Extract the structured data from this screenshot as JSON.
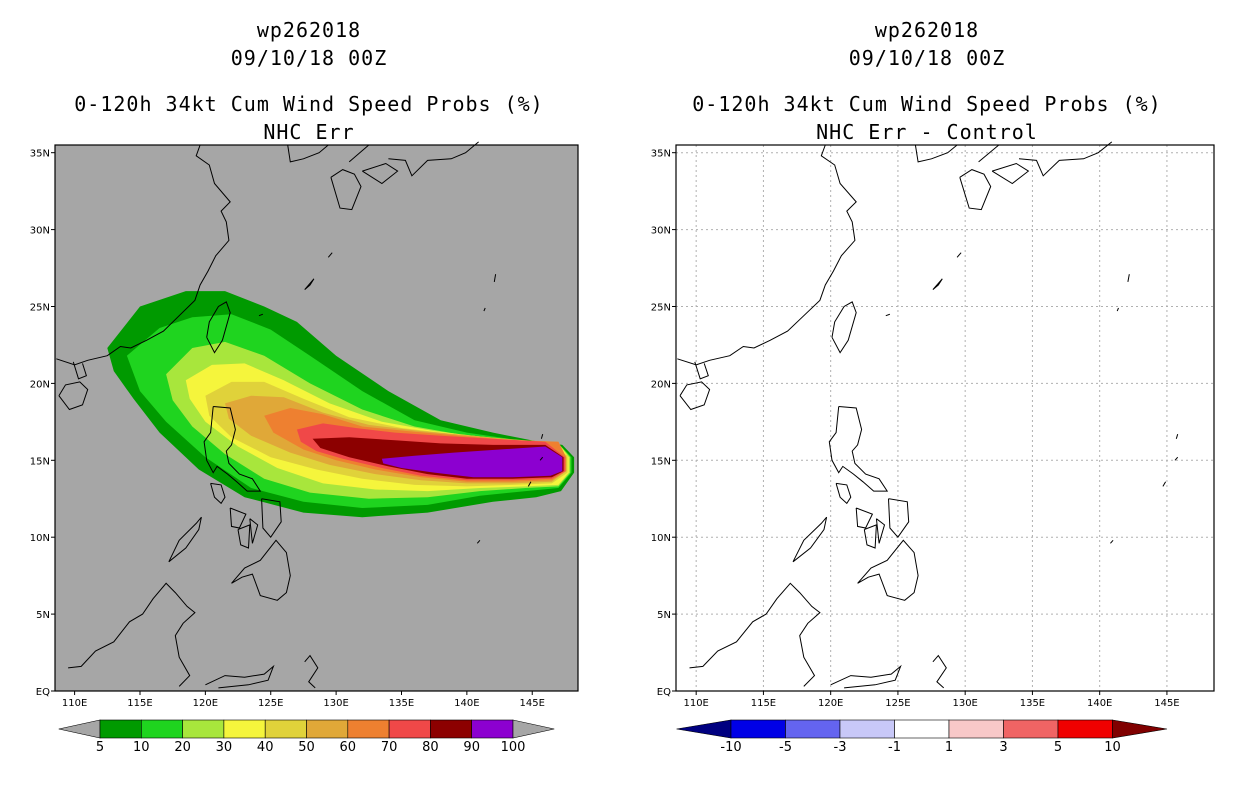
{
  "left_panel": {
    "title_storm": "wp262018",
    "title_date": "09/10/18 00Z",
    "title_product": "0-120h 34kt Cum Wind Speed Probs (%)",
    "title_variant": "NHC Err",
    "colorbar": {
      "labels": [
        "5",
        "10",
        "20",
        "30",
        "40",
        "50",
        "60",
        "70",
        "80",
        "90",
        "100"
      ],
      "colors": [
        "#a6a6a6",
        "#009a00",
        "#1fd41f",
        "#a8e63c",
        "#f5f53c",
        "#e0d23a",
        "#e0a838",
        "#ee8030",
        "#f04848",
        "#8c0000",
        "#8c00d0",
        "#a6a6a6"
      ]
    }
  },
  "right_panel": {
    "title_storm": "wp262018",
    "title_date": "09/10/18 00Z",
    "title_product": "0-120h 34kt Cum Wind Speed Probs (%)",
    "title_variant": "NHC Err - Control",
    "colorbar": {
      "labels": [
        "-10",
        "-5",
        "-3",
        "-1",
        "1",
        "3",
        "5",
        "10"
      ],
      "colors": [
        "#000080",
        "#0000e6",
        "#6464f0",
        "#c8c8f8",
        "#ffffff",
        "#f8c8c8",
        "#f06464",
        "#f00000",
        "#800000"
      ]
    }
  },
  "axes": {
    "lon_labels": [
      "110E",
      "115E",
      "120E",
      "125E",
      "130E",
      "135E",
      "140E",
      "145E"
    ],
    "lat_labels": [
      "EQ",
      "5N",
      "10N",
      "15N",
      "20N",
      "25N",
      "30N",
      "35N"
    ]
  },
  "map_data": {
    "lon_range": [
      108.5,
      148.5
    ],
    "lat_range": [
      0,
      35.5
    ],
    "prob_contours": [
      {
        "level": 5,
        "color": "#009a00",
        "points": [
          [
            112.5,
            22.3
          ],
          [
            115,
            25
          ],
          [
            118.5,
            26
          ],
          [
            121.5,
            26
          ],
          [
            124.5,
            25
          ],
          [
            127,
            24
          ],
          [
            130,
            21.8
          ],
          [
            134,
            19.5
          ],
          [
            138,
            17.6
          ],
          [
            142,
            16.8
          ],
          [
            145.5,
            16.2
          ],
          [
            147.3,
            16.0
          ],
          [
            148.2,
            15.2
          ],
          [
            148.2,
            14.2
          ],
          [
            147.2,
            13.0
          ],
          [
            145.3,
            12.6
          ],
          [
            142,
            12.3
          ],
          [
            137,
            11.6
          ],
          [
            132,
            11.3
          ],
          [
            127.5,
            11.6
          ],
          [
            123,
            12.6
          ],
          [
            119.5,
            14.4
          ],
          [
            116.5,
            16.8
          ],
          [
            114.5,
            19
          ],
          [
            113,
            20.8
          ]
        ]
      },
      {
        "level": 10,
        "color": "#1fd41f",
        "points": [
          [
            114,
            21.8
          ],
          [
            116.5,
            23.6
          ],
          [
            119,
            24.3
          ],
          [
            122,
            24.5
          ],
          [
            125,
            23.5
          ],
          [
            128,
            21.8
          ],
          [
            132,
            19.5
          ],
          [
            136,
            17.6
          ],
          [
            140,
            16.8
          ],
          [
            144,
            16.3
          ],
          [
            147,
            16.1
          ],
          [
            148,
            15.2
          ],
          [
            148,
            14.2
          ],
          [
            147,
            13.2
          ],
          [
            144.5,
            13.0
          ],
          [
            141,
            12.7
          ],
          [
            137,
            12.1
          ],
          [
            132,
            11.9
          ],
          [
            127.5,
            12.3
          ],
          [
            123.5,
            13.2
          ],
          [
            120,
            15.2
          ],
          [
            117,
            17.5
          ],
          [
            115,
            19.5
          ]
        ]
      },
      {
        "level": 20,
        "color": "#a8e63c",
        "points": [
          [
            117,
            20.6
          ],
          [
            119,
            22.3
          ],
          [
            121.5,
            22.7
          ],
          [
            124.5,
            21.8
          ],
          [
            128,
            20
          ],
          [
            132,
            18.3
          ],
          [
            136,
            17.2
          ],
          [
            140,
            16.6
          ],
          [
            144,
            16.2
          ],
          [
            147,
            16.1
          ],
          [
            147.9,
            15.2
          ],
          [
            147.9,
            14.2
          ],
          [
            147,
            13.3
          ],
          [
            144.5,
            13.2
          ],
          [
            141,
            13.0
          ],
          [
            137,
            12.6
          ],
          [
            132.5,
            12.5
          ],
          [
            128,
            12.9
          ],
          [
            124.5,
            13.8
          ],
          [
            121.5,
            15.4
          ],
          [
            119,
            17.2
          ],
          [
            117.5,
            18.9
          ]
        ]
      },
      {
        "level": 30,
        "color": "#f5f53c",
        "points": [
          [
            118.5,
            20.2
          ],
          [
            120.5,
            21.2
          ],
          [
            123,
            21.3
          ],
          [
            126,
            20.2
          ],
          [
            129.5,
            18.7
          ],
          [
            133.5,
            17.5
          ],
          [
            137.5,
            16.9
          ],
          [
            141.5,
            16.5
          ],
          [
            145,
            16.2
          ],
          [
            147,
            16.1
          ],
          [
            147.8,
            15.2
          ],
          [
            147.8,
            14.2
          ],
          [
            147,
            13.4
          ],
          [
            144.5,
            13.3
          ],
          [
            141,
            13.2
          ],
          [
            137,
            13.0
          ],
          [
            133,
            13.1
          ],
          [
            129,
            13.5
          ],
          [
            125.5,
            14.5
          ],
          [
            122.5,
            15.9
          ],
          [
            120,
            17.5
          ],
          [
            118.8,
            19
          ]
        ]
      },
      {
        "level": 40,
        "color": "#e0d23a",
        "points": [
          [
            120,
            19.2
          ],
          [
            122,
            20.1
          ],
          [
            124.5,
            20.1
          ],
          [
            127.5,
            19
          ],
          [
            131,
            17.8
          ],
          [
            135,
            17.1
          ],
          [
            139,
            16.7
          ],
          [
            143,
            16.4
          ],
          [
            146,
            16.2
          ],
          [
            147.7,
            15.3
          ],
          [
            147.7,
            14.2
          ],
          [
            146.5,
            13.5
          ],
          [
            143.5,
            13.4
          ],
          [
            140,
            13.3
          ],
          [
            136,
            13.4
          ],
          [
            132,
            13.8
          ],
          [
            128.5,
            14.4
          ],
          [
            125,
            15.2
          ],
          [
            122,
            16.5
          ],
          [
            120.3,
            17.9
          ]
        ]
      },
      {
        "level": 50,
        "color": "#e0a838",
        "points": [
          [
            121.5,
            18.7
          ],
          [
            123.5,
            19.2
          ],
          [
            126,
            19.1
          ],
          [
            129,
            18.1
          ],
          [
            132.5,
            17.3
          ],
          [
            136.5,
            16.9
          ],
          [
            140.5,
            16.6
          ],
          [
            144,
            16.3
          ],
          [
            147,
            16.2
          ],
          [
            147.6,
            15.2
          ],
          [
            147.6,
            14.3
          ],
          [
            146.5,
            13.6
          ],
          [
            143.5,
            13.5
          ],
          [
            140,
            13.5
          ],
          [
            136.5,
            13.7
          ],
          [
            133,
            14.1
          ],
          [
            129.5,
            14.7
          ],
          [
            126.5,
            15.5
          ],
          [
            123.5,
            16.6
          ],
          [
            121.8,
            17.7
          ]
        ]
      },
      {
        "level": 60,
        "color": "#ee8030",
        "points": [
          [
            124.5,
            17.9
          ],
          [
            126.5,
            18.4
          ],
          [
            129,
            18
          ],
          [
            132,
            17.2
          ],
          [
            135.5,
            16.9
          ],
          [
            139.5,
            16.6
          ],
          [
            143.5,
            16.3
          ],
          [
            147,
            16.2
          ],
          [
            147.6,
            15.2
          ],
          [
            147.6,
            14.3
          ],
          [
            146.5,
            13.7
          ],
          [
            143.5,
            13.6
          ],
          [
            140,
            13.6
          ],
          [
            136.5,
            13.9
          ],
          [
            133,
            14.4
          ],
          [
            130,
            15
          ],
          [
            127.5,
            15.7
          ],
          [
            125.2,
            16.8
          ]
        ]
      },
      {
        "level": 70,
        "color": "#f04848",
        "points": [
          [
            127,
            17
          ],
          [
            129,
            17.4
          ],
          [
            131.5,
            17.1
          ],
          [
            134.5,
            16.8
          ],
          [
            138,
            16.6
          ],
          [
            142,
            16.4
          ],
          [
            146,
            16.2
          ],
          [
            147.5,
            15.2
          ],
          [
            147.5,
            14.3
          ],
          [
            146.5,
            13.8
          ],
          [
            143.5,
            13.7
          ],
          [
            140,
            13.7
          ],
          [
            136.5,
            14
          ],
          [
            133.5,
            14.5
          ],
          [
            130.5,
            15.1
          ],
          [
            128.5,
            15.6
          ],
          [
            127.3,
            16.2
          ]
        ]
      },
      {
        "level": 80,
        "color": "#8c0000",
        "points": [
          [
            128.2,
            16.4
          ],
          [
            131,
            16.5
          ],
          [
            134.5,
            16.3
          ],
          [
            138,
            16.1
          ],
          [
            142,
            16.0
          ],
          [
            146,
            16.0
          ],
          [
            147.4,
            15.2
          ],
          [
            147.4,
            14.3
          ],
          [
            146.5,
            13.9
          ],
          [
            143.5,
            13.8
          ],
          [
            140,
            13.8
          ],
          [
            137,
            14.1
          ],
          [
            134,
            14.6
          ],
          [
            131,
            15.2
          ],
          [
            128.8,
            15.8
          ]
        ]
      },
      {
        "level": 90,
        "color": "#8c00d0",
        "points": [
          [
            133.5,
            15.1
          ],
          [
            136,
            15.3
          ],
          [
            139,
            15.5
          ],
          [
            142.5,
            15.7
          ],
          [
            146,
            15.9
          ],
          [
            147.3,
            15.2
          ],
          [
            147.3,
            14.3
          ],
          [
            146.4,
            14.0
          ],
          [
            143.5,
            13.9
          ],
          [
            140.5,
            13.9
          ],
          [
            137.5,
            14.2
          ],
          [
            135,
            14.5
          ],
          [
            133.6,
            14.8
          ]
        ]
      }
    ]
  }
}
